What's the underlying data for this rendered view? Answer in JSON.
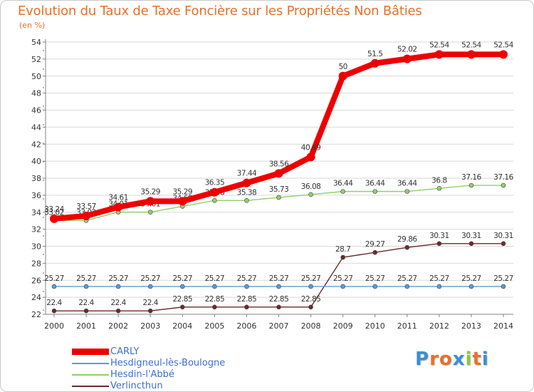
{
  "header": {
    "title": "Evolution du Taux de Taxe Foncière sur les Propriétés Non Bâties",
    "unit": "(en %)"
  },
  "colors": {
    "title": "#e8702a",
    "axis": "#808080",
    "grid": "#d9d9d9",
    "tick_label": "#333333",
    "legend_text": "#3d6fd6"
  },
  "logo": {
    "letters": [
      "P",
      "r",
      "o",
      "x",
      "i",
      "t",
      "i"
    ],
    "colors": [
      "#3a8fd6",
      "#e8702a",
      "#e8702a",
      "#3a8fd6",
      "#8cc63f",
      "#e8702a",
      "#3a8fd6"
    ]
  },
  "chart_data": {
    "type": "line",
    "title": "Evolution du Taux de Taxe Foncière sur les Propriétés Non Bâties",
    "xlabel": "",
    "ylabel": "(en %)",
    "ylim": [
      22,
      54
    ],
    "yticks": [
      22,
      24,
      26,
      28,
      30,
      32,
      34,
      36,
      38,
      40,
      42,
      44,
      46,
      48,
      50,
      52,
      54
    ],
    "grid": "horizontal",
    "legend": "bottom-left",
    "categories": [
      "2000",
      "2001",
      "2002",
      "2003",
      "2004",
      "2005",
      "2006",
      "2007",
      "2008",
      "2009",
      "2010",
      "2011",
      "2012",
      "2013",
      "2014"
    ],
    "series": [
      {
        "name": "Verlincthun",
        "color": "#6b2a2a",
        "style": "thin",
        "values": [
          22.4,
          22.4,
          22.4,
          22.4,
          22.85,
          22.85,
          22.85,
          22.85,
          22.85,
          28.7,
          29.27,
          29.86,
          30.31,
          30.31,
          30.31
        ],
        "labels": [
          "22.4",
          "22.4",
          "22.4",
          "22.4",
          "22.85",
          "22.85",
          "22.85",
          "22.85",
          "22.85",
          "28.7",
          "29.27",
          "29.86",
          "30.31",
          "30.31",
          "30.31"
        ]
      },
      {
        "name": "Hesdin-l'Abbé",
        "color": "#8fd06a",
        "style": "thin",
        "values": [
          33.02,
          33.02,
          34.01,
          34.01,
          34.69,
          35.38,
          35.38,
          35.73,
          36.08,
          36.44,
          36.44,
          36.44,
          36.8,
          37.16,
          37.16
        ],
        "labels": [
          "33.02",
          "33.02",
          "34.01",
          "34.01",
          "34.69",
          "35.38",
          "35.38",
          "35.73",
          "36.08",
          "36.44",
          "36.44",
          "36.44",
          "36.8",
          "37.16",
          "37.16"
        ]
      },
      {
        "name": "Hesdigneul-lès-Boulogne",
        "color": "#5b9bd5",
        "style": "thin",
        "values": [
          25.27,
          25.27,
          25.27,
          25.27,
          25.27,
          25.27,
          25.27,
          25.27,
          25.27,
          25.27,
          25.27,
          25.27,
          25.27,
          25.27,
          25.27
        ],
        "labels": [
          "25.27",
          "25.27",
          "25.27",
          "25.27",
          "25.27",
          "25.27",
          "25.27",
          "25.27",
          "25.27",
          "25.27",
          "25.27",
          "25.27",
          "25.27",
          "25.27",
          "25.27"
        ]
      },
      {
        "name": "CARLY",
        "color": "#ee0000",
        "style": "thick",
        "values": [
          33.24,
          33.57,
          34.61,
          35.29,
          35.29,
          36.35,
          37.44,
          38.56,
          40.49,
          50,
          51.5,
          52.02,
          52.54,
          52.54,
          52.54
        ],
        "labels": [
          "33.24",
          "33.57",
          "34.61",
          "35.29",
          "35.29",
          "36.35",
          "37.44",
          "38.56",
          "40.49",
          "50",
          "51.5",
          "52.02",
          "52.54",
          "52.54",
          "52.54"
        ]
      }
    ],
    "legend_order": [
      "CARLY",
      "Hesdigneul-lès-Boulogne",
      "Hesdin-l'Abbé",
      "Verlincthun"
    ]
  }
}
